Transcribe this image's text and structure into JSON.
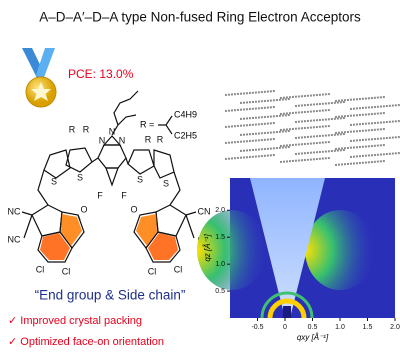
{
  "title": "A–D–A′–D–A type Non-fused Ring Electron Acceptors",
  "pce": "PCE: 13.0%",
  "molecule": {
    "r_def": "R =",
    "chain1": "C4H9",
    "chain2": "C2H5",
    "atoms": [
      "R",
      "R",
      "R",
      "R",
      "S",
      "S",
      "S",
      "S",
      "N",
      "N",
      "N",
      "F",
      "F",
      "NC",
      "NC",
      "CN",
      "CN",
      "O",
      "O",
      "Cl",
      "Cl",
      "Cl",
      "Cl"
    ]
  },
  "quote": "“End group & Side chain”",
  "points": [
    "✓ Improved crystal packing",
    "✓ Optimized face-on orientation"
  ],
  "giwaxs": {
    "xlabel": "qxy [Å⁻¹]",
    "ylabel": "qz [Å⁻¹]",
    "xlim": [
      -1.0,
      2.0
    ],
    "ylim": [
      0,
      2.6
    ],
    "xticks": [
      -0.5,
      0,
      0.5,
      {
        "value": 1,
        "label": "1.0"
      },
      1.5,
      {
        "value": 2,
        "label": "2.0"
      }
    ],
    "yticks": [
      0.5,
      {
        "value": 1,
        "label": "1.0"
      },
      1.5,
      {
        "value": 2,
        "label": "2.0"
      }
    ]
  }
}
